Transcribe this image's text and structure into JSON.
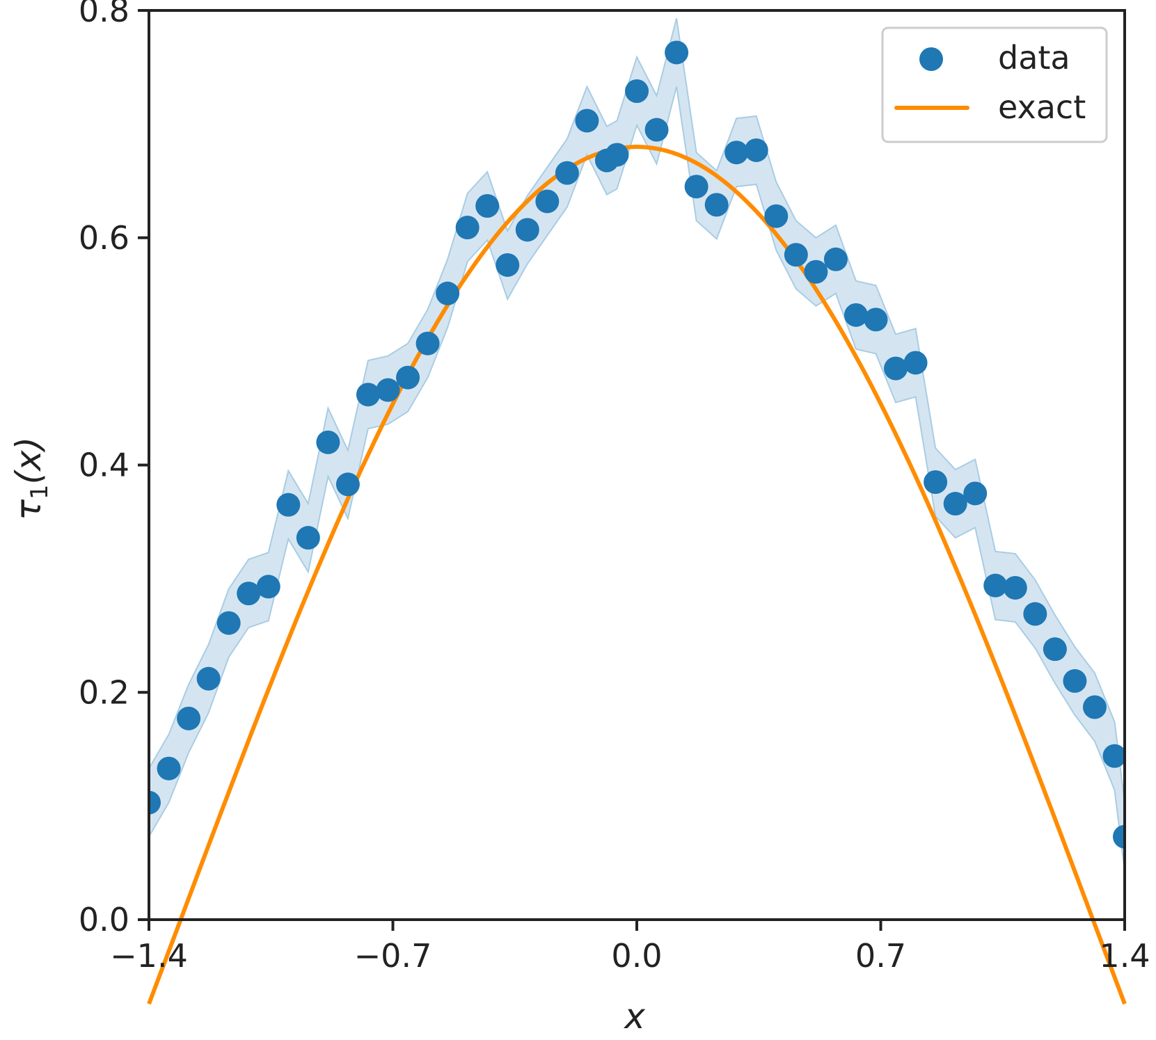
{
  "chart_data": {
    "type": "scatter",
    "title": "",
    "xlabel": "x",
    "ylabel_main": "τ",
    "ylabel_sub": "1",
    "ylabel_tail": "(x)",
    "xlim": [
      -1.4,
      1.4
    ],
    "ylim": [
      0.0,
      0.8
    ],
    "x_ticks": [
      -1.4,
      -0.7,
      0.0,
      0.7,
      1.4
    ],
    "x_tick_labels": [
      "−1.4",
      "−0.7",
      "0.0",
      "0.7",
      "1.4"
    ],
    "y_ticks": [
      0.0,
      0.2,
      0.4,
      0.6,
      0.8
    ],
    "y_tick_labels": [
      "0.0",
      "0.2",
      "0.4",
      "0.6",
      "0.8"
    ],
    "grid": false,
    "legend_position": "top-right",
    "colors": {
      "data": "#1f77b4",
      "band": "#a9cce3",
      "exact": "#ff8c00",
      "axis": "#222222"
    },
    "series": [
      {
        "name": "data",
        "kind": "scatter",
        "x": [
          -1.4,
          -1.343,
          -1.286,
          -1.229,
          -1.171,
          -1.114,
          -1.057,
          -1.0,
          -0.943,
          -0.886,
          -0.829,
          -0.771,
          -0.714,
          -0.657,
          -0.6,
          -0.543,
          -0.486,
          -0.429,
          -0.371,
          -0.314,
          -0.257,
          -0.2,
          -0.143,
          -0.086,
          -0.057,
          0.0,
          0.057,
          0.114,
          0.171,
          0.229,
          0.286,
          0.343,
          0.4,
          0.457,
          0.514,
          0.571,
          0.629,
          0.686,
          0.743,
          0.8,
          0.857,
          0.914,
          0.971,
          1.029,
          1.086,
          1.143,
          1.2,
          1.257,
          1.314,
          1.371,
          1.4
        ],
        "y": [
          0.103,
          0.133,
          0.177,
          0.212,
          0.261,
          0.287,
          0.293,
          0.365,
          0.336,
          0.42,
          0.383,
          0.462,
          0.466,
          0.477,
          0.507,
          0.551,
          0.609,
          0.628,
          0.576,
          0.607,
          0.632,
          0.657,
          0.703,
          0.668,
          0.673,
          0.729,
          0.695,
          0.763,
          0.645,
          0.629,
          0.675,
          0.677,
          0.619,
          0.585,
          0.57,
          0.581,
          0.532,
          0.528,
          0.485,
          0.49,
          0.385,
          0.366,
          0.375,
          0.294,
          0.292,
          0.269,
          0.238,
          0.21,
          0.187,
          0.144,
          0.073
        ]
      },
      {
        "name": "exact",
        "kind": "line",
        "formula": "0.68*cos(1.2*x)"
      }
    ],
    "band_halfwidth": 0.03
  }
}
